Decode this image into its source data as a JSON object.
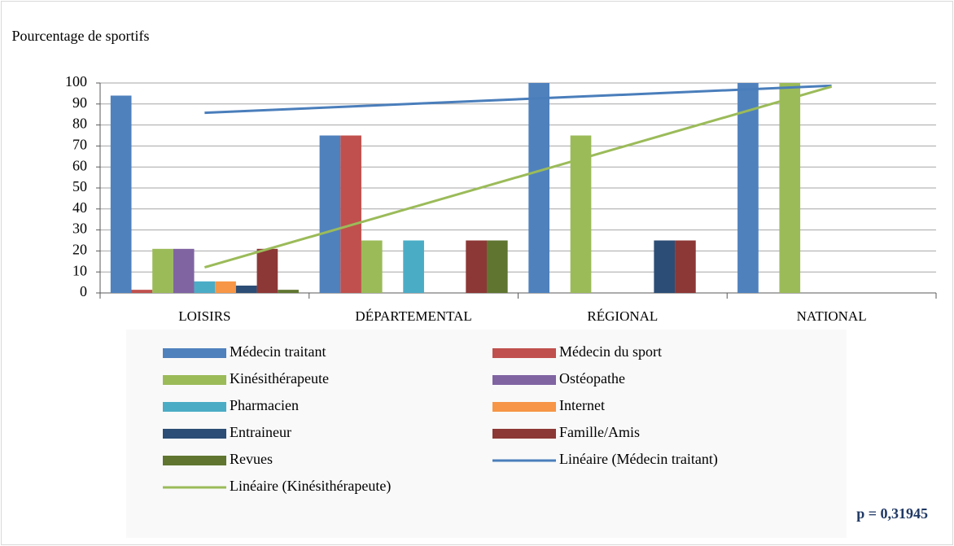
{
  "chart_data": {
    "type": "bar",
    "y_label": "Pourcentage de sportifs",
    "categories": [
      "LOISIRS",
      "DÉPARTEMENTAL",
      "RÉGIONAL",
      "NATIONAL"
    ],
    "series": [
      {
        "name": "Médecin traitant",
        "color": "#4f81bd",
        "values": [
          94,
          75,
          100,
          100
        ]
      },
      {
        "name": "Médecin du sport",
        "color": "#c0504d",
        "values": [
          1.5,
          75,
          0,
          0
        ]
      },
      {
        "name": "Kinésithérapeute",
        "color": "#9bbb59",
        "values": [
          21,
          25,
          75,
          100
        ]
      },
      {
        "name": "Ostéopathe",
        "color": "#8064a2",
        "values": [
          21,
          0,
          0,
          0
        ]
      },
      {
        "name": "Pharmacien",
        "color": "#4bacc6",
        "values": [
          5.5,
          25,
          0,
          0
        ]
      },
      {
        "name": "Internet",
        "color": "#f79646",
        "values": [
          5.5,
          0,
          0,
          0
        ]
      },
      {
        "name": "Entraineur",
        "color": "#2c4d75",
        "values": [
          3.5,
          0,
          25,
          0
        ]
      },
      {
        "name": "Famille/Amis",
        "color": "#8c3836",
        "values": [
          21,
          25,
          25,
          0
        ]
      },
      {
        "name": "Revues",
        "color": "#5f7530",
        "values": [
          1.5,
          25,
          0,
          0
        ]
      },
      {
        "name": "Linéaire (Médecin traitant)",
        "type": "line",
        "color": "#4a7ebb",
        "values": [
          85.8,
          90.1,
          94.4,
          98.7
        ]
      },
      {
        "name": "Linéaire (Kinésithérapeute)",
        "type": "line",
        "color": "#9bbb59",
        "values": [
          12.2,
          40.9,
          69.6,
          98.3
        ]
      }
    ],
    "ylim": [
      0,
      100
    ],
    "yticks": [
      0,
      10,
      20,
      30,
      40,
      50,
      60,
      70,
      80,
      90,
      100
    ],
    "grid": true,
    "annotation": "p = 0,31945"
  }
}
